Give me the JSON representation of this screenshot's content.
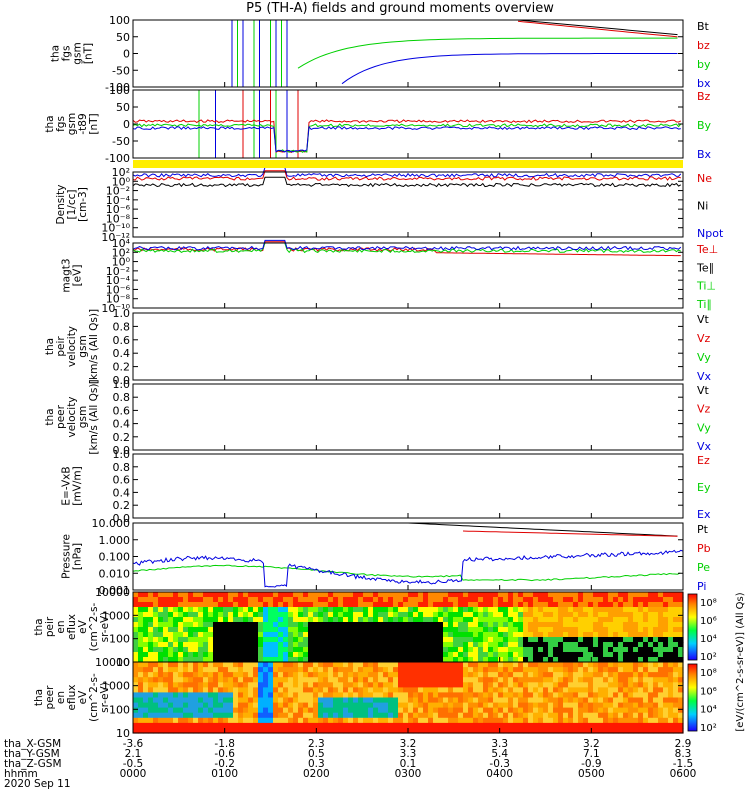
{
  "title": "P5 (TH-A) fields and ground moments overview",
  "time_axis": {
    "rows": [
      {
        "label": "tha_X-GSM",
        "values": [
          "-3.6",
          "-1.8",
          "2.3",
          "3.2",
          "3.3",
          "3.2",
          "2.9"
        ]
      },
      {
        "label": "tha_Y-GSM",
        "values": [
          "2.1",
          "-0.6",
          "0.5",
          "3.3",
          "5.4",
          "7.1",
          "8.3"
        ]
      },
      {
        "label": "tha_Z-GSM",
        "values": [
          "-0.5",
          "-0.2",
          "0.3",
          "0.1",
          "-0.3",
          "-0.9",
          "-1.5"
        ]
      },
      {
        "label": "hhmm",
        "values": [
          "0000",
          "0100",
          "0200",
          "0300",
          "0400",
          "0500",
          "0600"
        ]
      }
    ],
    "date": "2020 Sep 11"
  },
  "colors": {
    "black": "#000000",
    "red": "#e00000",
    "green": "#00d000",
    "blue": "#0000e0",
    "yellow": "#ffee00"
  },
  "chart_data": [
    {
      "id": "fgs",
      "type": "line",
      "ylabel": [
        "tha",
        "fgs",
        "gsm",
        "[nT]"
      ],
      "yticks": [
        "100",
        "50",
        "0",
        "-50",
        "-100"
      ],
      "ylim": [
        -100,
        100
      ],
      "series": [
        {
          "name": "Bt",
          "color": "black"
        },
        {
          "name": "bz",
          "color": "red"
        },
        {
          "name": "by",
          "color": "green"
        },
        {
          "name": "bx",
          "color": "blue"
        }
      ]
    },
    {
      "id": "fgs_t89",
      "type": "line",
      "ylabel": [
        "tha",
        "fgs",
        "gsm",
        "-t89",
        "[nT]"
      ],
      "yticks": [
        "100",
        "50",
        "0",
        "-50",
        "-100"
      ],
      "ylim": [
        -120,
        120
      ],
      "series": [
        {
          "name": "Bz",
          "color": "red"
        },
        {
          "name": "By",
          "color": "green"
        },
        {
          "name": "Bx",
          "color": "blue"
        }
      ]
    },
    {
      "id": "density",
      "type": "line",
      "ylabel": [
        "Density",
        "[1/cc]",
        "[cm-3]"
      ],
      "yticks": [
        "10²",
        "10⁰",
        "10⁻²",
        "10⁻⁴",
        "10⁻⁶",
        "10⁻⁸",
        "10⁻¹⁰",
        "10⁻¹²"
      ],
      "log": true,
      "series": [
        {
          "name": "Ne",
          "color": "red"
        },
        {
          "name": "Ni",
          "color": "black"
        },
        {
          "name": "Npot",
          "color": "blue"
        }
      ]
    },
    {
      "id": "temp",
      "type": "line",
      "ylabel": [
        "magt3",
        "[eV]"
      ],
      "yticks": [
        "10⁴",
        "10²",
        "10⁰",
        "10⁻²",
        "10⁻⁴",
        "10⁻⁶",
        "10⁻⁸",
        "10⁻¹⁰"
      ],
      "log": true,
      "series": [
        {
          "name": "Te⊥",
          "color": "red"
        },
        {
          "name": "Te∥",
          "color": "black"
        },
        {
          "name": "Ti⊥",
          "color": "green"
        },
        {
          "name": "Ti∥",
          "color": "green"
        }
      ]
    },
    {
      "id": "peir_vel",
      "type": "line",
      "ylabel": [
        "tha",
        "peir",
        "velocity",
        "gsm",
        "[km/s (All Qs)]"
      ],
      "yticks": [
        "1.0",
        "0.8",
        "0.6",
        "0.4",
        "0.2",
        "0.0"
      ],
      "ylim": [
        0,
        1
      ],
      "series": [
        {
          "name": "Vt",
          "color": "black"
        },
        {
          "name": "Vz",
          "color": "red"
        },
        {
          "name": "Vy",
          "color": "green"
        },
        {
          "name": "Vx",
          "color": "blue"
        }
      ]
    },
    {
      "id": "peer_vel",
      "type": "line",
      "ylabel": [
        "tha",
        "peer",
        "velocity",
        "gsm",
        "[km/s (All Qs)]"
      ],
      "yticks": [
        "1.0",
        "0.8",
        "0.6",
        "0.4",
        "0.2",
        "0.0"
      ],
      "ylim": [
        0,
        1
      ],
      "series": [
        {
          "name": "Vt",
          "color": "black"
        },
        {
          "name": "Vz",
          "color": "red"
        },
        {
          "name": "Vy",
          "color": "green"
        },
        {
          "name": "Vx",
          "color": "blue"
        }
      ]
    },
    {
      "id": "efield",
      "type": "line",
      "ylabel": [
        "E=-VxB",
        "[mV/m]"
      ],
      "yticks": [
        "1.0",
        "0.8",
        "0.6",
        "0.4",
        "0.2",
        "0.0"
      ],
      "ylim": [
        0,
        1
      ],
      "series": [
        {
          "name": "Ez",
          "color": "red"
        },
        {
          "name": "Ey",
          "color": "green"
        },
        {
          "name": "Ex",
          "color": "blue"
        }
      ]
    },
    {
      "id": "pressure",
      "type": "line",
      "ylabel": [
        "Pressure",
        "[nPa]"
      ],
      "yticks": [
        "10.000",
        "1.000",
        "0.100",
        "0.010",
        "0.001"
      ],
      "log": true,
      "series": [
        {
          "name": "Pt",
          "color": "black"
        },
        {
          "name": "Pb",
          "color": "red"
        },
        {
          "name": "Pe",
          "color": "green"
        },
        {
          "name": "Pi",
          "color": "blue"
        }
      ]
    },
    {
      "id": "peir_eflux",
      "type": "heatmap",
      "ylabel": [
        "tha",
        "peir",
        "en",
        "eflux",
        "eV",
        "(cm^2-s-",
        "sr-eV)"
      ],
      "yticks": [
        "10000",
        "1000",
        "100",
        "10"
      ],
      "log": true
    },
    {
      "id": "peer_eflux",
      "type": "heatmap",
      "ylabel": [
        "tha",
        "peer",
        "en",
        "eflux",
        "eV",
        "(cm^2-s-",
        "sr-eV)"
      ],
      "yticks": [
        "10000",
        "1000",
        "100",
        "10"
      ],
      "log": true
    }
  ],
  "colorbar": {
    "ticks": [
      "10⁸",
      "10⁶",
      "10⁴",
      "10²"
    ],
    "label": "[eV/(cm^2-s-sr-eV)] (All Qs)"
  }
}
